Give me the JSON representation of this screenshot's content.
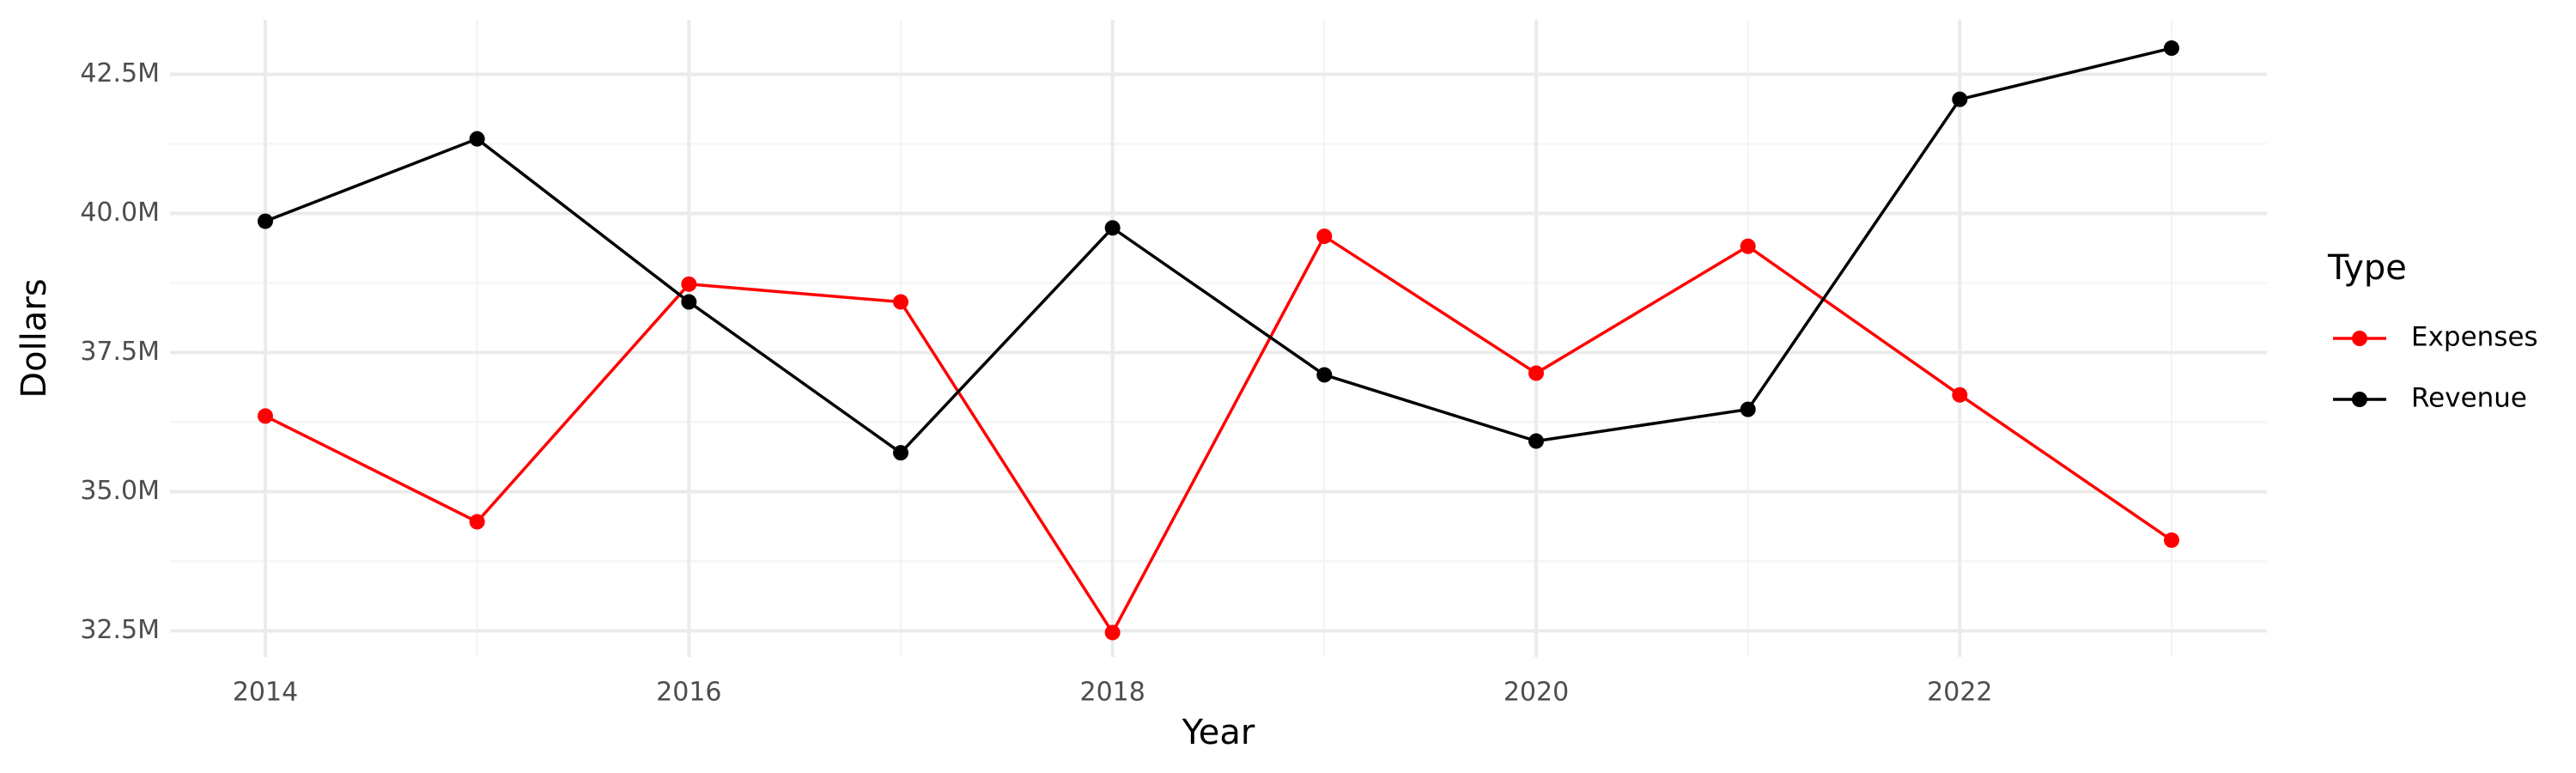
{
  "chart_data": {
    "type": "line",
    "x_label": "Year",
    "y_label": "Dollars",
    "x": [
      2014,
      2015,
      2016,
      2017,
      2018,
      2019,
      2020,
      2021,
      2022,
      2023
    ],
    "series": [
      {
        "name": "Expenses",
        "color": "#ff0000",
        "values": [
          36360000,
          34460000,
          38730000,
          38410000,
          32470000,
          39590000,
          37130000,
          39410000,
          36740000,
          34130000
        ]
      },
      {
        "name": "Revenue",
        "color": "#000000",
        "values": [
          39860000,
          41340000,
          38410000,
          35700000,
          39740000,
          37100000,
          35910000,
          36480000,
          42050000,
          42970000
        ]
      }
    ],
    "xlim": [
      2013.55,
      2023.45
    ],
    "xticks": [
      2014,
      2016,
      2018,
      2020,
      2022
    ],
    "ylim": [
      32030000,
      43480000
    ],
    "yticks": [
      {
        "value": 32500000,
        "label": "32.5M"
      },
      {
        "value": 35000000,
        "label": "35.0M"
      },
      {
        "value": 37500000,
        "label": "37.5M"
      },
      {
        "value": 40000000,
        "label": "40.0M"
      },
      {
        "value": 42500000,
        "label": "42.5M"
      }
    ],
    "grid": true,
    "legend_title": "Type",
    "legend_position": "right"
  }
}
